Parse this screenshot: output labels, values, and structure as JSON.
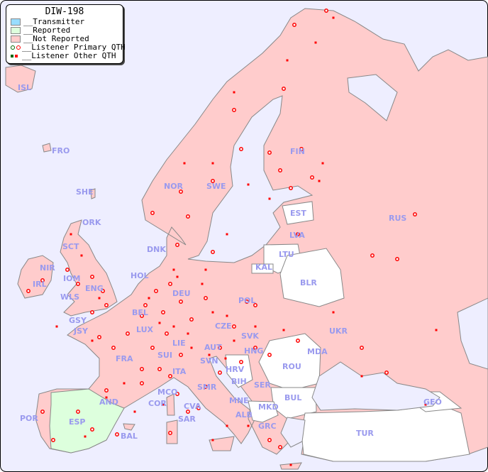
{
  "legend": {
    "title": "DIW-198",
    "items": [
      {
        "label": "__Transmitter",
        "color": "#99ddff"
      },
      {
        "label": "__Reported",
        "color": "#ddffdd"
      },
      {
        "label": "__Not Reported",
        "color": "#ffcccc"
      },
      {
        "label": "__Listener Primary QTH",
        "colors": [
          "#006600",
          "#ff0000"
        ]
      },
      {
        "label": "__Listener Other QTH",
        "colors": [
          "#006600",
          "#ff0000"
        ]
      }
    ]
  },
  "colors": {
    "sea": "#eeeeff",
    "not_reported": "#ffcccc",
    "reported": "#ddffdd",
    "no_data": "#ffffff",
    "marker": "#ff0000",
    "label": "#9a9aee"
  },
  "countries": [
    "ISL",
    "FRO",
    "SHE",
    "ORK",
    "NOR",
    "SWE",
    "FIN",
    "EST",
    "RUS",
    "LVA",
    "LTU",
    "KAL",
    "BLR",
    "DNK",
    "SCT",
    "NIR",
    "IRL",
    "IOM",
    "ENG",
    "WLS",
    "HOL",
    "BEL",
    "LUX",
    "DEU",
    "POL",
    "CZE",
    "SVK",
    "UKR",
    "MDA",
    "GSY",
    "JSY",
    "FRA",
    "SUI",
    "LIE",
    "AUT",
    "HNG",
    "ROU",
    "SVN",
    "HRV",
    "BIH",
    "SER",
    "BUL",
    "ITA",
    "SMR",
    "MCO",
    "COR",
    "CVA",
    "MNE",
    "ALB",
    "MKD",
    "GRC",
    "TUR",
    "GEO",
    "AND",
    "POR",
    "ESP",
    "BAL",
    "SAR"
  ]
}
